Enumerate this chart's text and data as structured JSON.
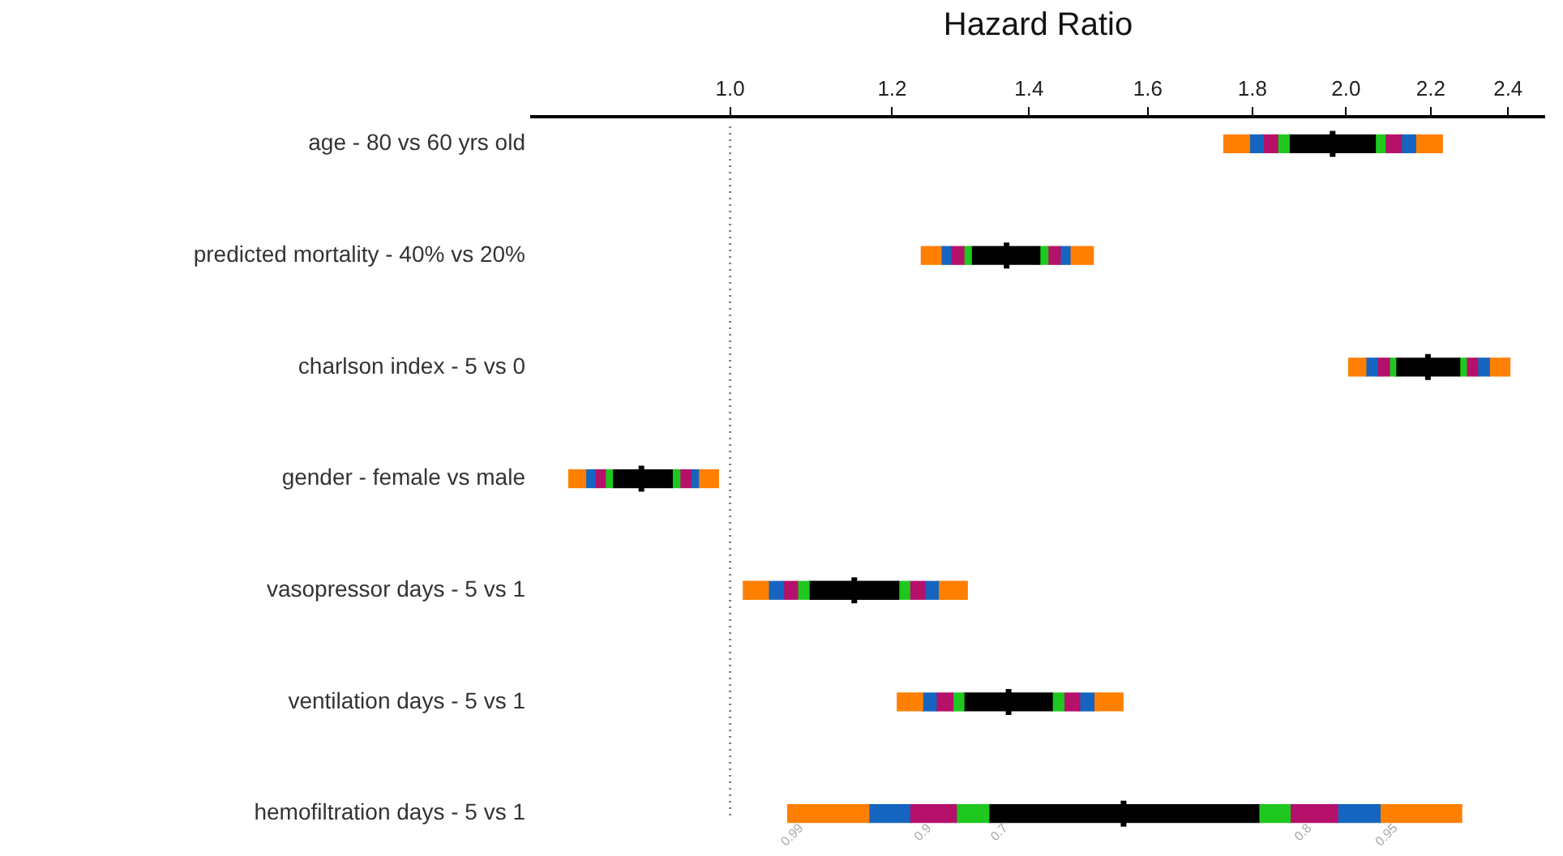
{
  "chart_data": {
    "type": "bar",
    "orientation": "horizontal",
    "xlabel": "Hazard Ratio",
    "log": "x",
    "categories": [
      "age - 80 vs 60 yrs old",
      "predicted mortality - 40% vs 20%",
      "charlson index - 5 vs 0",
      "gender - female vs male",
      "vasopressor days - 5 vs 1",
      "ventilation days - 5 vs 1",
      "hemofiltration days - 5 vs 1"
    ],
    "series": [
      {
        "color": "#ff7f00",
        "base": [
          1.743,
          1.24,
          2.006,
          0.834,
          1.015,
          1.207,
          1.067
        ],
        "values": [
          0.051,
          0.028,
          0.039,
          0.016,
          0.029,
          0.035,
          0.102
        ]
      },
      {
        "color": "#1565c0",
        "base": [
          1.794,
          1.268,
          2.045,
          0.85,
          1.044,
          1.242,
          1.169
        ],
        "values": [
          0.028,
          0.014,
          0.027,
          0.009,
          0.018,
          0.019,
          0.055
        ]
      },
      {
        "color": "#b5106a",
        "base": [
          1.822,
          1.282,
          2.072,
          0.859,
          1.062,
          1.261,
          1.224
        ],
        "values": [
          0.03,
          0.019,
          0.028,
          0.01,
          0.017,
          0.024,
          0.066
        ]
      },
      {
        "color": "#1ec81e",
        "base": [
          1.852,
          1.301,
          2.1,
          0.869,
          1.079,
          1.285,
          1.29
        ],
        "values": [
          0.024,
          0.011,
          0.015,
          0.007,
          0.014,
          0.016,
          0.048
        ]
      },
      {
        "color": "#000000",
        "base": [
          1.876,
          1.312,
          2.115,
          0.876,
          1.093,
          1.301,
          1.338
        ],
        "values": [
          0.191,
          0.105,
          0.158,
          0.061,
          0.116,
          0.136,
          0.475
        ]
      },
      {
        "color": "#1ec81e",
        "base": [
          2.067,
          1.417,
          2.273,
          0.937,
          1.209,
          1.437,
          1.813
        ],
        "values": [
          0.023,
          0.013,
          0.017,
          0.008,
          0.015,
          0.019,
          0.065
        ]
      },
      {
        "color": "#b5106a",
        "base": [
          2.09,
          1.43,
          2.29,
          0.945,
          1.224,
          1.456,
          1.878
        ],
        "values": [
          0.038,
          0.02,
          0.029,
          0.012,
          0.021,
          0.026,
          0.103
        ]
      },
      {
        "color": "#1565c0",
        "base": [
          2.128,
          1.45,
          2.319,
          0.957,
          1.245,
          1.482,
          1.981
        ],
        "values": [
          0.035,
          0.016,
          0.031,
          0.008,
          0.019,
          0.024,
          0.097
        ]
      },
      {
        "color": "#ff7f00",
        "base": [
          2.163,
          1.466,
          2.35,
          0.965,
          1.264,
          1.506,
          2.078
        ],
        "values": [
          0.066,
          0.039,
          0.055,
          0.022,
          0.042,
          0.05,
          0.2
        ]
      },
      {
        "type": "scatter",
        "color": "#000000",
        "marker": "cross",
        "x": [
          "age - 80 vs 60 yrs old",
          "predicted mortality - 40% vs 20%",
          "charlson index - 5 vs 0",
          "gender - female vs male",
          "vasopressor days - 5 vs 1",
          "ventilation days - 5 vs 1",
          "hemofiltration days - 5 vs 1"
        ],
        "values": [
          1.97,
          1.365,
          2.193,
          0.905,
          1.15,
          1.368,
          1.557
        ]
      }
    ],
    "xlim": [
      0.8,
      2.5
    ],
    "xticks": [
      {
        "value": 1,
        "label": "1.0"
      },
      1.2,
      1.4,
      1.6,
      1.8,
      {
        "value": 2,
        "label": "2.0"
      },
      2.2,
      2.4
    ],
    "ref_lines": [
      {
        "axis": "x",
        "value": 1,
        "color": "#808080",
        "line_style": "dotted"
      }
    ],
    "annotations": [
      {
        "text": "0.99",
        "x": 1.07,
        "y": "hemofiltration days - 5 vs 1"
      },
      {
        "text": "0.9",
        "x": 1.236,
        "y": "hemofiltration days - 5 vs 1"
      },
      {
        "text": "0.7",
        "x": 1.347,
        "y": "hemofiltration days - 5 vs 1"
      },
      {
        "text": "0.8",
        "x": 1.896,
        "y": "hemofiltration days - 5 vs 1"
      },
      {
        "text": "0.95",
        "x": 2.089,
        "y": "hemofiltration days - 5 vs 1"
      }
    ],
    "grid": false,
    "legend": false
  }
}
